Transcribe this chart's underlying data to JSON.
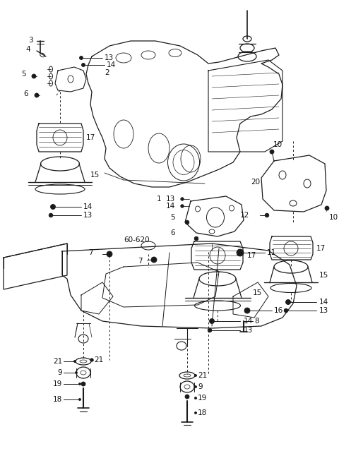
{
  "bg_color": "#ffffff",
  "line_color": "#1a1a1a",
  "text_color": "#111111",
  "fig_width": 4.8,
  "fig_height": 6.56,
  "dpi": 100
}
